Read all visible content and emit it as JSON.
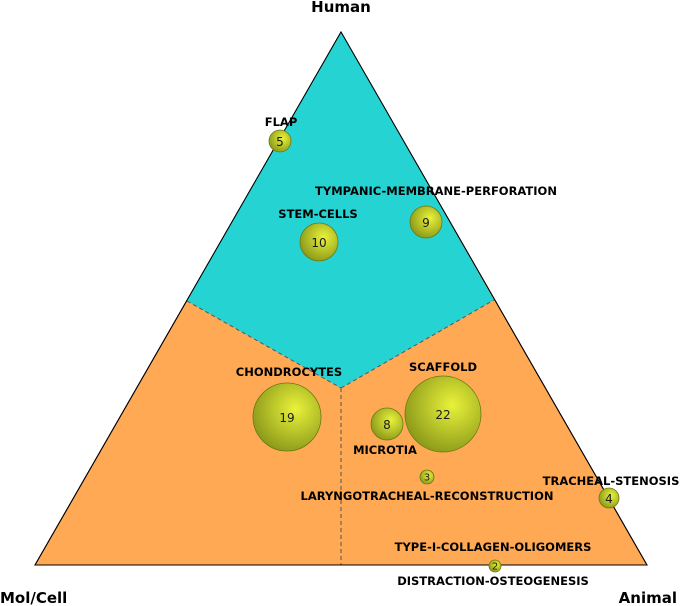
{
  "corners": {
    "top": "Human",
    "left": "Mol/Cell",
    "right": "Animal"
  },
  "colors": {
    "human_region": "#26d3d3",
    "base_region": "#ffa955",
    "outline": "#000000",
    "bubble_light": "#e9f23a",
    "bubble_dark": "#7f8e16"
  },
  "terms": [
    {
      "label": "FLAP",
      "count": "5"
    },
    {
      "label": "TYMPANIC-MEMBRANE-PERFORATION",
      "count": "9"
    },
    {
      "label": "STEM-CELLS",
      "count": "10"
    },
    {
      "label": "CHONDROCYTES",
      "count": "19"
    },
    {
      "label": "SCAFFOLD",
      "count": "22"
    },
    {
      "label": "MICROTIA",
      "count": "8"
    },
    {
      "label": "LARYNGOTRACHEAL-RECONSTRUCTION",
      "count": "3"
    },
    {
      "label": "TRACHEAL-STENOSIS",
      "count": "4"
    },
    {
      "label": "TYPE-I-COLLAGEN-OLIGOMERS",
      "count": ""
    },
    {
      "label": "DISTRACTION-OSTEOGENESIS",
      "count": "2"
    }
  ]
}
